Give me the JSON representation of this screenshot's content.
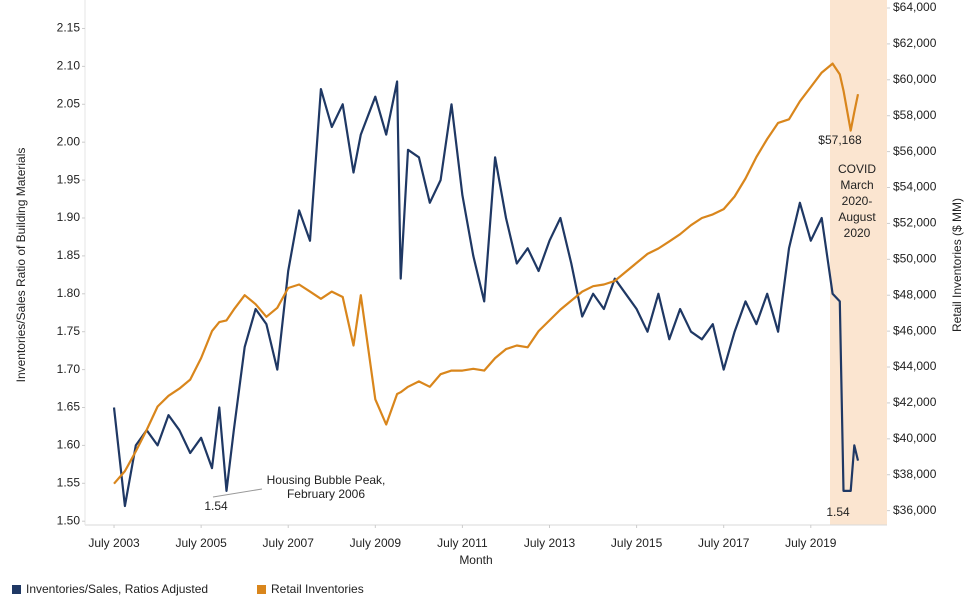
{
  "chart_data": {
    "type": "line",
    "x_label": "Month",
    "y_label": "Inventories/Sales Ratio of Building Materials",
    "y2_label": "Retail Inventories ($ MM)",
    "x": [
      "2003-07",
      "2003-10",
      "2004-01",
      "2004-04",
      "2004-07",
      "2004-10",
      "2005-01",
      "2005-04",
      "2005-07",
      "2005-10",
      "2005-12",
      "2006-02",
      "2006-04",
      "2006-07",
      "2006-10",
      "2007-01",
      "2007-04",
      "2007-07",
      "2007-10",
      "2008-01",
      "2008-04",
      "2008-07",
      "2008-10",
      "2009-01",
      "2009-03",
      "2009-07",
      "2009-10",
      "2010-01",
      "2010-02",
      "2010-04",
      "2010-07",
      "2010-10",
      "2011-01",
      "2011-04",
      "2011-07",
      "2011-10",
      "2012-01",
      "2012-04",
      "2012-07",
      "2012-10",
      "2013-01",
      "2013-04",
      "2013-07",
      "2013-10",
      "2014-01",
      "2014-04",
      "2014-07",
      "2014-10",
      "2015-01",
      "2015-04",
      "2015-07",
      "2015-10",
      "2016-01",
      "2016-04",
      "2016-07",
      "2016-10",
      "2017-01",
      "2017-04",
      "2017-07",
      "2017-10",
      "2018-01",
      "2018-04",
      "2018-07",
      "2018-10",
      "2019-01",
      "2019-04",
      "2019-07",
      "2019-10",
      "2020-01",
      "2020-03",
      "2020-04",
      "2020-06",
      "2020-07",
      "2020-08"
    ],
    "series": [
      {
        "name": "Inventories/Sales, Ratios Adjusted",
        "color": "#1f3864",
        "axis": "y",
        "values": [
          1.65,
          1.52,
          1.6,
          1.62,
          1.6,
          1.64,
          1.62,
          1.59,
          1.61,
          1.57,
          1.65,
          1.54,
          1.62,
          1.73,
          1.78,
          1.76,
          1.7,
          1.83,
          1.91,
          1.87,
          2.07,
          2.02,
          2.05,
          1.96,
          2.01,
          2.06,
          2.01,
          2.08,
          1.82,
          1.99,
          1.98,
          1.92,
          1.95,
          2.05,
          1.93,
          1.85,
          1.79,
          1.98,
          1.9,
          1.84,
          1.86,
          1.83,
          1.87,
          1.9,
          1.84,
          1.77,
          1.8,
          1.78,
          1.82,
          1.8,
          1.78,
          1.75,
          1.8,
          1.74,
          1.78,
          1.75,
          1.74,
          1.76,
          1.7,
          1.75,
          1.79,
          1.76,
          1.8,
          1.75,
          1.86,
          1.92,
          1.87,
          1.9,
          1.8,
          1.79,
          1.54,
          1.54,
          1.6,
          1.58
        ]
      },
      {
        "name": "Retail Inventories",
        "color": "#d9861c",
        "axis": "y2",
        "values": [
          37500,
          38200,
          39300,
          40500,
          41800,
          42400,
          42800,
          43300,
          44500,
          46000,
          46500,
          46600,
          47200,
          48000,
          47500,
          46800,
          47300,
          48400,
          48600,
          48200,
          47800,
          48200,
          47900,
          45200,
          48000,
          42200,
          40800,
          42500,
          42600,
          42900,
          43200,
          42900,
          43600,
          43800,
          43800,
          43900,
          43800,
          44500,
          45000,
          45200,
          45100,
          46000,
          46600,
          47200,
          47700,
          48200,
          48500,
          48600,
          48800,
          49300,
          49800,
          50300,
          50600,
          51000,
          51400,
          51900,
          52300,
          52500,
          52800,
          53500,
          54500,
          55700,
          56700,
          57600,
          57800,
          58800,
          59600,
          60400,
          60900,
          60300,
          59400,
          57168,
          58200,
          59200
        ]
      }
    ],
    "xlim": [
      "2002-11",
      "2021-04"
    ],
    "xticks": [
      {
        "value": "2003-07",
        "label": "July 2003"
      },
      {
        "value": "2005-07",
        "label": "July 2005"
      },
      {
        "value": "2007-07",
        "label": "July 2007"
      },
      {
        "value": "2009-07",
        "label": "July 2009"
      },
      {
        "value": "2011-07",
        "label": "July 2011"
      },
      {
        "value": "2013-07",
        "label": "July 2013"
      },
      {
        "value": "2015-07",
        "label": "July 2015"
      },
      {
        "value": "2017-07",
        "label": "July 2017"
      },
      {
        "value": "2019-07",
        "label": "July 2019"
      }
    ],
    "ylim": [
      1.495,
      2.177
    ],
    "yticks": [
      {
        "value": 1.5,
        "label": "1.50"
      },
      1.55,
      {
        "value": 1.6,
        "label": "1.60"
      },
      1.65,
      {
        "value": 1.7,
        "label": "1.70"
      },
      1.75,
      {
        "value": 1.8,
        "label": "1.80"
      },
      1.85,
      {
        "value": 1.9,
        "label": "1.90"
      },
      1.95,
      {
        "value": 2,
        "label": "2.00"
      },
      2.05,
      {
        "value": 2.1,
        "label": "2.10"
      },
      2.15
    ],
    "y2lim": [
      35200,
      64000
    ],
    "y2ticks": [
      {
        "value": 36000,
        "label": "$36,000"
      },
      {
        "value": 38000,
        "label": "$38,000"
      },
      {
        "value": 40000,
        "label": "$40,000"
      },
      {
        "value": 42000,
        "label": "$42,000"
      },
      {
        "value": 44000,
        "label": "$44,000"
      },
      {
        "value": 46000,
        "label": "$46,000"
      },
      {
        "value": 48000,
        "label": "$48,000"
      },
      {
        "value": 50000,
        "label": "$50,000"
      },
      {
        "value": 52000,
        "label": "$52,000"
      },
      {
        "value": 54000,
        "label": "$54,000"
      },
      {
        "value": 56000,
        "label": "$56,000"
      },
      {
        "value": 58000,
        "label": "$58,000"
      },
      {
        "value": 60000,
        "label": "$60,000"
      },
      {
        "value": 62000,
        "label": "$62,000"
      },
      {
        "value": 64000,
        "label": "$64,000"
      }
    ],
    "grid": false,
    "legend": "bottom-left",
    "annotations": [
      {
        "lines": [
          "Housing Bubble Peak,",
          "February 2006"
        ]
      },
      {
        "lines": [
          "1.54"
        ]
      },
      {
        "lines": [
          "1.54"
        ]
      },
      {
        "lines": [
          "$57,168"
        ]
      },
      {
        "lines": [
          "COVID",
          "March",
          "2020-",
          "August",
          "2020"
        ]
      }
    ]
  }
}
